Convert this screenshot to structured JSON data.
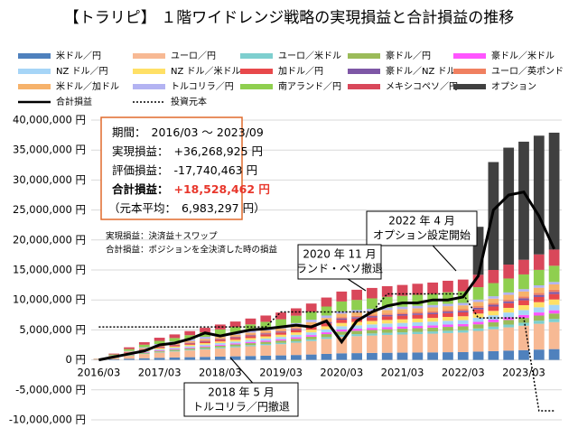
{
  "chart_data": {
    "type": "bar",
    "title": "【トラリピ】 １階ワイドレンジ戦略の実現損益と合計損益の推移",
    "categories": [
      "2016/03",
      null,
      null,
      null,
      "2017/03",
      null,
      null,
      null,
      "2018/03",
      null,
      null,
      null,
      "2019/03",
      null,
      null,
      null,
      "2020/03",
      null,
      null,
      null,
      "2021/03",
      null,
      null,
      null,
      "2022/03",
      null,
      null,
      null,
      "2023/03",
      null,
      null
    ],
    "ylim": [
      -10000000,
      40000000
    ],
    "yticks": [
      {
        "value": -10000000,
        "label": "-10,000,000 円"
      },
      {
        "value": -5000000,
        "label": "-5,000,000 円"
      },
      {
        "value": 0,
        "label": "0 円"
      },
      {
        "value": 5000000,
        "label": "5,000,000 円"
      },
      {
        "value": 10000000,
        "label": "10,000,000 円"
      },
      {
        "value": 15000000,
        "label": "15,000,000 円"
      },
      {
        "value": 20000000,
        "label": "20,000,000 円"
      },
      {
        "value": 25000000,
        "label": "25,000,000 円"
      },
      {
        "value": 30000000,
        "label": "30,000,000 円"
      },
      {
        "value": 35000000,
        "label": "35,000,000 円"
      },
      {
        "value": 40000000,
        "label": "40,000,000 円"
      }
    ],
    "grid": true,
    "stacked": true,
    "series": [
      {
        "name": "米ドル／円",
        "color": "#4f81bd",
        "values": [
          20000,
          100000,
          200000,
          280000,
          350000,
          400000,
          450000,
          500000,
          550000,
          600000,
          650000,
          700000,
          750000,
          820000,
          900000,
          1000000,
          1100000,
          1130000,
          1160000,
          1190000,
          1210000,
          1230000,
          1250000,
          1280000,
          1300000,
          1380000,
          1460000,
          1550000,
          1630000,
          1720000,
          1800000
        ]
      },
      {
        "name": "ユーロ／円",
        "color": "#f7b994",
        "values": [
          50000,
          250000,
          500000,
          700000,
          875000,
          1000000,
          1125000,
          1250000,
          1375000,
          1500000,
          1625000,
          1750000,
          1875000,
          2050000,
          2250000,
          2500000,
          2750000,
          2825000,
          2900000,
          2975000,
          3025000,
          3075000,
          3125000,
          3200000,
          3250000,
          3450000,
          3650000,
          3875000,
          4075000,
          4300000,
          4500000
        ]
      },
      {
        "name": "ユーロ／米ドル",
        "color": "#7ecfcf",
        "values": [
          6000,
          30000,
          60000,
          84000,
          105000,
          120000,
          135000,
          150000,
          165000,
          180000,
          195000,
          210000,
          225000,
          246000,
          270000,
          300000,
          330000,
          339000,
          348000,
          357000,
          363000,
          369000,
          375000,
          384000,
          390000,
          414000,
          438000,
          465000,
          489000,
          516000,
          540000
        ]
      },
      {
        "name": "豪ドル／円",
        "color": "#9bbb59",
        "values": [
          10000,
          50000,
          100000,
          140000,
          175000,
          200000,
          225000,
          250000,
          275000,
          300000,
          325000,
          350000,
          375000,
          410000,
          450000,
          500000,
          550000,
          565000,
          580000,
          595000,
          605000,
          615000,
          625000,
          640000,
          650000,
          690000,
          730000,
          775000,
          815000,
          860000,
          900000
        ]
      },
      {
        "name": "豪ドル／米ドル",
        "color": "#ff55ff",
        "values": [
          6000,
          30000,
          60000,
          84000,
          105000,
          120000,
          135000,
          150000,
          165000,
          180000,
          195000,
          210000,
          225000,
          246000,
          270000,
          300000,
          330000,
          339000,
          348000,
          357000,
          363000,
          369000,
          375000,
          384000,
          390000,
          414000,
          438000,
          465000,
          489000,
          516000,
          540000
        ]
      },
      {
        "name": "NZ ドル／円",
        "color": "#a6d5f7",
        "values": [
          10000,
          50000,
          100000,
          140000,
          175000,
          200000,
          225000,
          250000,
          275000,
          300000,
          325000,
          350000,
          375000,
          410000,
          450000,
          500000,
          550000,
          565000,
          580000,
          595000,
          605000,
          615000,
          625000,
          640000,
          650000,
          690000,
          730000,
          775000,
          815000,
          860000,
          900000
        ]
      },
      {
        "name": "NZ ドル／米ドル",
        "color": "#ffe066",
        "values": [
          10000,
          50000,
          100000,
          140000,
          175000,
          200000,
          225000,
          250000,
          275000,
          300000,
          325000,
          350000,
          375000,
          410000,
          450000,
          500000,
          550000,
          565000,
          580000,
          595000,
          605000,
          615000,
          625000,
          640000,
          650000,
          690000,
          730000,
          775000,
          815000,
          860000,
          900000
        ]
      },
      {
        "name": "加ドル／円",
        "color": "#e8484b",
        "values": [
          10000,
          50000,
          100000,
          140000,
          175000,
          200000,
          225000,
          250000,
          275000,
          300000,
          325000,
          350000,
          375000,
          410000,
          450000,
          500000,
          550000,
          565000,
          580000,
          595000,
          605000,
          615000,
          625000,
          640000,
          650000,
          690000,
          730000,
          775000,
          815000,
          860000,
          900000
        ]
      },
      {
        "name": "豪ドル／NZ ドル",
        "color": "#7e57a6",
        "values": [
          4000,
          20000,
          40000,
          56000,
          70000,
          80000,
          90000,
          100000,
          110000,
          120000,
          130000,
          140000,
          150000,
          164000,
          180000,
          200000,
          220000,
          226000,
          232000,
          238000,
          242000,
          246000,
          250000,
          256000,
          260000,
          276000,
          292000,
          310000,
          326000,
          344000,
          360000
        ]
      },
      {
        "name": "ユーロ／英ポンド",
        "color": "#f08060",
        "values": [
          4000,
          20000,
          40000,
          56000,
          70000,
          80000,
          90000,
          100000,
          110000,
          120000,
          130000,
          140000,
          150000,
          164000,
          180000,
          200000,
          220000,
          226000,
          232000,
          238000,
          242000,
          246000,
          250000,
          256000,
          260000,
          276000,
          292000,
          310000,
          326000,
          344000,
          360000
        ]
      },
      {
        "name": "米ドル／加ドル",
        "color": "#f6b26b",
        "values": [
          10000,
          50000,
          100000,
          140000,
          175000,
          200000,
          225000,
          250000,
          275000,
          300000,
          325000,
          350000,
          375000,
          410000,
          450000,
          500000,
          550000,
          565000,
          580000,
          595000,
          605000,
          615000,
          625000,
          640000,
          650000,
          690000,
          730000,
          775000,
          815000,
          860000,
          900000
        ]
      },
      {
        "name": "トルコリラ／円",
        "color": "#b3b3f2",
        "values": [
          0,
          50000,
          100000,
          150000,
          200000,
          250000,
          300000,
          350000,
          400000,
          400000,
          400000,
          400000,
          400000,
          400000,
          400000,
          400000,
          400000,
          400000,
          400000,
          400000,
          400000,
          400000,
          400000,
          400000,
          400000,
          400000,
          400000,
          400000,
          400000,
          400000,
          400000
        ]
      },
      {
        "name": "南アランド／円",
        "color": "#8fcf4f",
        "values": [
          30000,
          150000,
          300000,
          420000,
          525000,
          600000,
          675000,
          750000,
          825000,
          900000,
          975000,
          1050000,
          1125000,
          1230000,
          1350000,
          1500000,
          1650000,
          1695000,
          1740000,
          1785000,
          1815000,
          1845000,
          1875000,
          1920000,
          1950000,
          2070000,
          2190000,
          2325000,
          2445000,
          2580000,
          2700000
        ]
      },
      {
        "name": "メキシコペソ／円",
        "color": "#d9475a",
        "values": [
          30000,
          150000,
          300000,
          420000,
          525000,
          600000,
          675000,
          750000,
          825000,
          900000,
          975000,
          1050000,
          1125000,
          1230000,
          1350000,
          1500000,
          1650000,
          1695000,
          1740000,
          1785000,
          1815000,
          1845000,
          1875000,
          1920000,
          1950000,
          2070000,
          2190000,
          2325000,
          2445000,
          2580000,
          2700000
        ]
      },
      {
        "name": "オプション",
        "color": "#404040",
        "values": [
          0,
          0,
          0,
          0,
          0,
          0,
          0,
          0,
          0,
          0,
          0,
          0,
          0,
          0,
          0,
          0,
          0,
          0,
          0,
          0,
          0,
          0,
          0,
          0,
          0,
          8000000,
          18000000,
          19500000,
          19700000,
          19800000,
          19500000
        ]
      },
      {
        "name": "合計損益",
        "type": "line",
        "color": "#000000",
        "values": [
          0,
          500000,
          1000000,
          1500000,
          2500000,
          2800000,
          3500000,
          4500000,
          4000000,
          4500000,
          5000000,
          5200000,
          5500000,
          5800000,
          5500000,
          6500000,
          3000000,
          6500000,
          8000000,
          9000000,
          9500000,
          9500000,
          10000000,
          10000000,
          10500000,
          14000000,
          25000000,
          27500000,
          28000000,
          24000000,
          18500000
        ]
      },
      {
        "name": "投資元本",
        "type": "line",
        "dashed": true,
        "color": "#000000",
        "values": [
          5500000,
          5500000,
          5500000,
          5500000,
          5500000,
          5500000,
          5500000,
          5500000,
          5500000,
          5500000,
          5500000,
          5500000,
          8000000,
          8000000,
          8000000,
          8000000,
          8000000,
          8000000,
          8000000,
          11000000,
          11000000,
          11000000,
          11000000,
          11000000,
          11000000,
          7000000,
          7000000,
          7000000,
          7000000,
          -8500000,
          -8500000
        ]
      }
    ],
    "summary": [
      {
        "label": "期間：",
        "value": "2016/03 ～ 2023/09"
      },
      {
        "label": "実現損益：",
        "value": "+36,268,925 円"
      },
      {
        "label": "評価損益：",
        "value": "-17,740,463 円"
      },
      {
        "label": "合計損益：",
        "value": "+18,528,462 円"
      },
      {
        "label": "（元本平均：",
        "value": "6,983,297 円）"
      }
    ],
    "notes": [
      "実現損益：決済益＋スワップ",
      "合計損益：ポジションを全決済した時の損益"
    ],
    "annotations": [
      {
        "lines": [
          "2022 年 4 月",
          "オプション設定開始"
        ]
      },
      {
        "lines": [
          "2020 年 11 月",
          "ランド・ペソ撤退"
        ]
      },
      {
        "lines": [
          "2018 年 5 月",
          "トルコリラ／円撤退"
        ]
      }
    ]
  }
}
